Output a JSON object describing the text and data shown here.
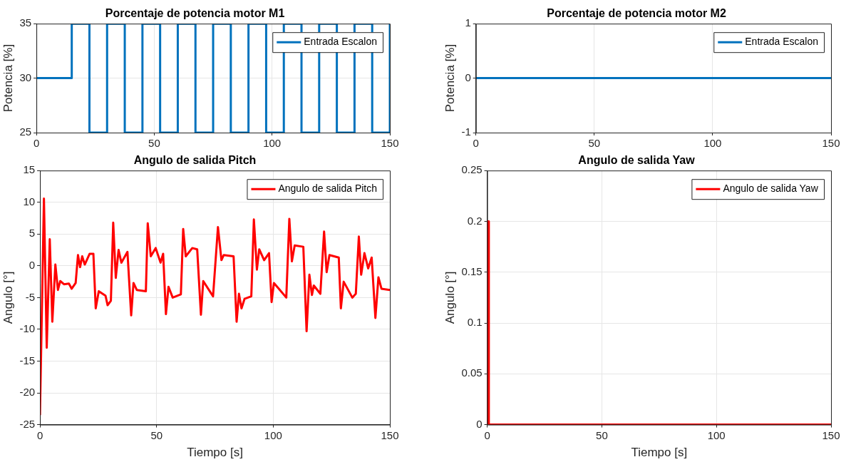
{
  "chart_data": [
    {
      "type": "step",
      "title": "Porcentaje de potencia motor M1",
      "ylabel": "Potencia [%]",
      "xlim": [
        0,
        150
      ],
      "xticks": [
        0,
        50,
        100,
        150
      ],
      "ylim": [
        25,
        35
      ],
      "yticks": [
        25,
        30,
        35
      ],
      "grid": true,
      "legend": "top right",
      "series": [
        {
          "name": "Entrada Escalon",
          "color": "#0072bd",
          "x": [
            0,
            15,
            22.5,
            30,
            37.5,
            45,
            52.5,
            60,
            67.5,
            75,
            82.5,
            90,
            97.5,
            105,
            112.5,
            120,
            127.5,
            135,
            142.5,
            150
          ],
          "values": [
            30,
            35,
            25,
            35,
            25,
            35,
            25,
            35,
            25,
            35,
            25,
            35,
            25,
            35,
            25,
            35,
            25,
            35,
            25,
            35
          ]
        }
      ]
    },
    {
      "type": "line",
      "title": "Porcentaje de potencia motor M2",
      "ylabel": "Potencia [%]",
      "xlim": [
        0,
        150
      ],
      "xticks": [
        0,
        50,
        100,
        150
      ],
      "ylim": [
        -1,
        1
      ],
      "yticks": [
        -1,
        0,
        1
      ],
      "grid": true,
      "legend": "top right",
      "series": [
        {
          "name": "Entrada Escalon",
          "color": "#0072bd",
          "x": [
            0,
            150
          ],
          "values": [
            0,
            0
          ]
        }
      ]
    },
    {
      "type": "line",
      "title": "Angulo de salida Pitch",
      "xlabel": "Tiempo [s]",
      "ylabel": "Angulo [°]",
      "xlim": [
        0,
        150
      ],
      "xticks": [
        0,
        50,
        100,
        150
      ],
      "ylim": [
        -25,
        15
      ],
      "yticks": [
        -25,
        -20,
        -15,
        -10,
        -5,
        0,
        5,
        10,
        15
      ],
      "grid": true,
      "legend": "top right",
      "series": [
        {
          "name": "Angulo de salida Pitch",
          "color": "#ff0000",
          "x": [
            0,
            1.7,
            2.9,
            4.2,
            5.3,
            6.6,
            7.7,
            8.7,
            10.3,
            12.4,
            13.6,
            15.3,
            16.3,
            17.2,
            18.1,
            19.2,
            21.3,
            22.9,
            23.9,
            25.2,
            28.1,
            29,
            30.4,
            31.4,
            32.5,
            33.7,
            34.9,
            37.5,
            39.1,
            40.1,
            41.5,
            45.4,
            46.2,
            47.5,
            49.6,
            51.7,
            52.8,
            54,
            55.1,
            56.9,
            60.4,
            61.4,
            62.5,
            65.3,
            67.4,
            69,
            70,
            74.2,
            76.3,
            77.8,
            78.8,
            83,
            84.3,
            85.3,
            86.4,
            87.7,
            90.6,
            91.7,
            93,
            94,
            96.1,
            98.2,
            99.3,
            100.3,
            102.4,
            105.6,
            106.9,
            108,
            109.2,
            112.9,
            114.3,
            115.5,
            116.6,
            117.4,
            120.2,
            121.8,
            122.9,
            124.1,
            128.1,
            129,
            130.2,
            133.9,
            135.4,
            136.7,
            137.7,
            139.1,
            140.7,
            142.2,
            143.8,
            145.1,
            146.4,
            150
          ],
          "values": [
            -23.5,
            10.6,
            -12.9,
            4.2,
            -8.8,
            0.2,
            -3.8,
            -2.4,
            -2.9,
            -2.8,
            -3.6,
            -2.7,
            1.7,
            -0.2,
            1.5,
            0.2,
            1.9,
            1.9,
            -6.7,
            -4,
            -4.7,
            -6.2,
            -5.5,
            6.8,
            -1.9,
            2.5,
            0.5,
            2.2,
            -7.8,
            -2.7,
            -3.8,
            -4,
            6.7,
            1.5,
            2.8,
            0.5,
            1.9,
            -7.6,
            -3.3,
            -5,
            -4.5,
            5.8,
            1.5,
            2.8,
            2.6,
            -7.7,
            -2.4,
            -4.8,
            6.1,
            0.9,
            1.7,
            1.5,
            -8.8,
            -4.4,
            -6.7,
            -5.2,
            -4.8,
            7.3,
            -0.6,
            2.6,
            0.9,
            2,
            -5.7,
            -2.7,
            -3.6,
            -5,
            7.4,
            0.7,
            3.2,
            3,
            -10.3,
            -1.4,
            -4.6,
            -3.1,
            -4.4,
            5.4,
            -1,
            1.7,
            1.3,
            -6.7,
            -2.5,
            -5,
            -4.4,
            4.6,
            -1.4,
            2,
            -0.4,
            1.3,
            -8.2,
            -1.8,
            -3.6,
            -3.8
          ]
        }
      ]
    },
    {
      "type": "line",
      "title": "Angulo de salida Yaw",
      "xlabel": "Tiempo [s]",
      "ylabel": "Angulo [°]",
      "xlim": [
        0,
        150
      ],
      "xticks": [
        0,
        50,
        100,
        150
      ],
      "ylim": [
        0,
        0.25
      ],
      "yticks": [
        0,
        0.05,
        0.1,
        0.15,
        0.2,
        0.25
      ],
      "grid": true,
      "legend": "top right",
      "series": [
        {
          "name": "Angulo de salida Yaw",
          "color": "#ff0000",
          "x": [
            0,
            0.1,
            0.6,
            0.7,
            150
          ],
          "values": [
            0,
            0.2,
            0.2,
            0,
            0
          ]
        }
      ]
    }
  ]
}
